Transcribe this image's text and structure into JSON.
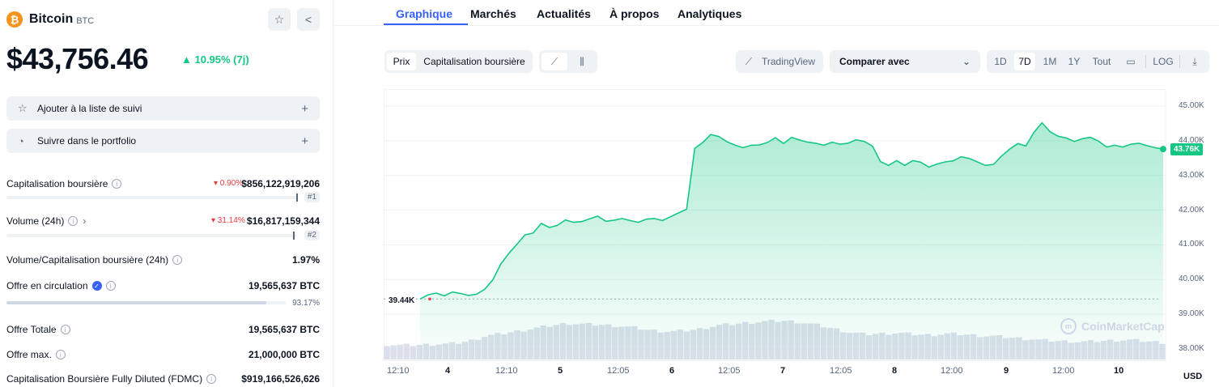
{
  "coin": {
    "name": "Bitcoin",
    "symbol": "BTC",
    "logo_glyph": "₿",
    "price": "$43,756.46",
    "change": "▲ 10.95% (7j)",
    "change_color": "#16c784"
  },
  "actions": {
    "watchlist": "Ajouter à la liste de suivi",
    "portfolio": "Suivre dans le portfolio"
  },
  "stats": {
    "market_cap": {
      "label": "Capitalisation boursière",
      "change": "▾ 0.90%",
      "value": "$856,122,919,206",
      "rank": "#1"
    },
    "volume": {
      "label": "Volume (24h)",
      "change": "▾ 31.14%",
      "value": "$16,817,159,344",
      "rank": "#2"
    },
    "vol_mcap": {
      "label": "Volume/Capitalisation boursière (24h)",
      "value": "1.97%"
    },
    "circulating": {
      "label": "Offre en circulation",
      "value": "19,565,637 BTC",
      "percent": "93.17%",
      "fraction": 0.9317
    },
    "total": {
      "label": "Offre Totale",
      "value": "19,565,637 BTC"
    },
    "max": {
      "label": "Offre max.",
      "value": "21,000,000 BTC"
    },
    "fdmc": {
      "label": "Capitalisation Boursière Fully Diluted (FDMC)",
      "value": "$919,166,526,626"
    }
  },
  "tabs": [
    "Graphique",
    "Marchés",
    "Actualités",
    "À propos",
    "Analytiques"
  ],
  "toolbar": {
    "prix": "Prix",
    "mcap": "Capitalisation boursière",
    "tradingview": "TradingView",
    "compare": "Comparer avec",
    "ranges": [
      "1D",
      "7D",
      "1M",
      "1Y",
      "Tout"
    ],
    "log": "LOG"
  },
  "chart_data": {
    "type": "area",
    "y_ticks": [
      "45.00K",
      "44.00K",
      "43.00K",
      "42.00K",
      "41.00K",
      "40.00K",
      "39.00K",
      "38.00K"
    ],
    "ylim": [
      38000,
      45200
    ],
    "x_ticks": [
      "12:10",
      "4",
      "12:10",
      "5",
      "12:05",
      "6",
      "12:05",
      "7",
      "12:05",
      "8",
      "12:00",
      "9",
      "12:00",
      "10"
    ],
    "bold_ticks": [
      "4",
      "5",
      "6",
      "7",
      "8",
      "9",
      "10"
    ],
    "current_price_label": "43.76K",
    "start_price_label": "39.44K",
    "start_price": 39440,
    "currency": "USD",
    "watermark": "CoinMarketCap",
    "line_color": "#16c784",
    "values": [
      39440,
      39560,
      39610,
      39530,
      39640,
      39600,
      39540,
      39580,
      39720,
      39990,
      40450,
      40760,
      41020,
      41290,
      41340,
      41620,
      41500,
      41560,
      41720,
      41650,
      41670,
      41750,
      41830,
      41680,
      41710,
      41760,
      41700,
      41650,
      41740,
      41760,
      41700,
      41810,
      41920,
      42030,
      43780,
      43950,
      44180,
      44120,
      43970,
      43870,
      43800,
      43870,
      43880,
      43950,
      44090,
      43920,
      44100,
      44020,
      43960,
      43930,
      43870,
      43960,
      43900,
      43930,
      44030,
      43980,
      43850,
      43400,
      43290,
      43430,
      43290,
      43430,
      43380,
      43240,
      43330,
      43390,
      43420,
      43540,
      43490,
      43390,
      43290,
      43320,
      43560,
      43760,
      43920,
      43850,
      44240,
      44520,
      44260,
      44130,
      44080,
      43980,
      44060,
      44100,
      43990,
      43820,
      43870,
      43820,
      43900,
      43930,
      43860,
      43800,
      43760
    ],
    "volume_shape": [
      0.3,
      0.28,
      0.29,
      0.31,
      0.33,
      0.4,
      0.55,
      0.62,
      0.7,
      0.78,
      0.86,
      0.92,
      0.9,
      0.88,
      0.85,
      0.8,
      0.72,
      0.68,
      0.7,
      0.76,
      0.86,
      0.9,
      0.95,
      0.98,
      1.0,
      0.96,
      0.88,
      0.78,
      0.66,
      0.6,
      0.62,
      0.64,
      0.6,
      0.58,
      0.62,
      0.6,
      0.56,
      0.54,
      0.5,
      0.46,
      0.42,
      0.4,
      0.38,
      0.4,
      0.42,
      0.44,
      0.4,
      0.36
    ]
  },
  "icons": {
    "star": "☆",
    "share": "<",
    "watch": "☆",
    "portfolio": "◔",
    "plus": "+",
    "info": "i",
    "check": "✓",
    "chev": "⌄",
    "chev_right": "›",
    "line": "⟋",
    "candle": "⫼",
    "calendar": "▭",
    "download": "⤓",
    "tv": "⟋"
  }
}
